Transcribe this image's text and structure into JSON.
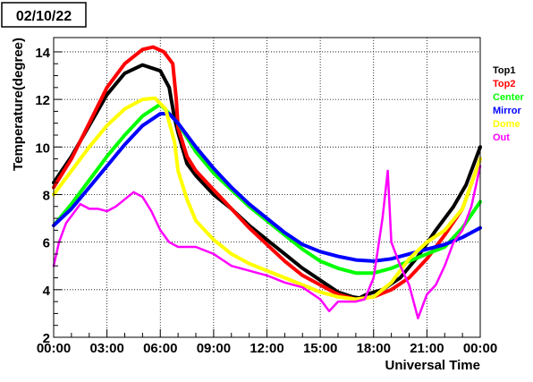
{
  "chart_data": {
    "type": "scatter",
    "title": "02/10/22",
    "xlabel": "Universal Time",
    "ylabel": "Temperature(degree)",
    "xlim": [
      0,
      24
    ],
    "ylim": [
      2,
      14.6
    ],
    "grid": true,
    "legend_placement": "right",
    "x_ticks": [
      {
        "value": 0,
        "label": "00:00"
      },
      {
        "value": 3,
        "label": "03:00"
      },
      {
        "value": 6,
        "label": "06:00"
      },
      {
        "value": 9,
        "label": "09:00"
      },
      {
        "value": 12,
        "label": "12:00"
      },
      {
        "value": 15,
        "label": "15:00"
      },
      {
        "value": 18,
        "label": "18:00"
      },
      {
        "value": 21,
        "label": "21:00"
      },
      {
        "value": 24,
        "label": "00:00"
      }
    ],
    "y_ticks": [
      {
        "value": 2,
        "label": "2"
      },
      {
        "value": 4,
        "label": "4"
      },
      {
        "value": 6,
        "label": "6"
      },
      {
        "value": 8,
        "label": "8"
      },
      {
        "value": 10,
        "label": "10"
      },
      {
        "value": 12,
        "label": "12"
      },
      {
        "value": 14,
        "label": "14"
      }
    ],
    "series": [
      {
        "name": "Top1",
        "color": "#000000",
        "points": [
          [
            0,
            8.5
          ],
          [
            1,
            9.6
          ],
          [
            2,
            10.9
          ],
          [
            3,
            12.2
          ],
          [
            4,
            13.1
          ],
          [
            5,
            13.45
          ],
          [
            6,
            13.2
          ],
          [
            6.5,
            12.5
          ],
          [
            6.8,
            11.2
          ],
          [
            7,
            10.6
          ],
          [
            7.5,
            9.3
          ],
          [
            8,
            8.8
          ],
          [
            9,
            8.0
          ],
          [
            10,
            7.4
          ],
          [
            11,
            6.7
          ],
          [
            12,
            6.1
          ],
          [
            13,
            5.5
          ],
          [
            14,
            4.9
          ],
          [
            15,
            4.4
          ],
          [
            16,
            3.9
          ],
          [
            16.8,
            3.7
          ],
          [
            17.2,
            3.65
          ],
          [
            17.6,
            3.8
          ],
          [
            18.5,
            4.0
          ],
          [
            19.5,
            4.5
          ],
          [
            20.5,
            5.4
          ],
          [
            21.5,
            6.5
          ],
          [
            22.5,
            7.5
          ],
          [
            23.2,
            8.4
          ],
          [
            24,
            10.0
          ]
        ]
      },
      {
        "name": "Top2",
        "color": "#ff0000",
        "points": [
          [
            0,
            8.3
          ],
          [
            1,
            9.5
          ],
          [
            2,
            11.0
          ],
          [
            3,
            12.5
          ],
          [
            4,
            13.5
          ],
          [
            5,
            14.1
          ],
          [
            5.6,
            14.2
          ],
          [
            6.2,
            14.0
          ],
          [
            6.7,
            13.5
          ],
          [
            6.9,
            12.0
          ],
          [
            7,
            10.8
          ],
          [
            7.5,
            9.6
          ],
          [
            8,
            9.0
          ],
          [
            9,
            8.2
          ],
          [
            10,
            7.4
          ],
          [
            11,
            6.6
          ],
          [
            12,
            5.9
          ],
          [
            13,
            5.2
          ],
          [
            14,
            4.6
          ],
          [
            15,
            4.2
          ],
          [
            16,
            3.8
          ],
          [
            17,
            3.6
          ],
          [
            18,
            3.7
          ],
          [
            19,
            4.0
          ],
          [
            20,
            4.5
          ],
          [
            21,
            5.3
          ],
          [
            22,
            6.3
          ],
          [
            23,
            7.4
          ],
          [
            24,
            9.5
          ]
        ]
      },
      {
        "name": "Center",
        "color": "#00ff00",
        "points": [
          [
            0,
            6.7
          ],
          [
            1,
            7.6
          ],
          [
            2,
            8.6
          ],
          [
            3,
            9.6
          ],
          [
            4,
            10.5
          ],
          [
            5,
            11.3
          ],
          [
            6,
            11.8
          ],
          [
            7,
            11.0
          ],
          [
            8,
            9.8
          ],
          [
            9,
            8.9
          ],
          [
            10,
            8.2
          ],
          [
            11,
            7.5
          ],
          [
            12,
            6.9
          ],
          [
            13,
            6.3
          ],
          [
            14,
            5.7
          ],
          [
            15,
            5.2
          ],
          [
            16,
            4.9
          ],
          [
            17,
            4.7
          ],
          [
            18,
            4.7
          ],
          [
            19,
            4.9
          ],
          [
            20,
            5.2
          ],
          [
            21,
            5.5
          ],
          [
            22,
            5.8
          ],
          [
            23,
            6.6
          ],
          [
            24,
            7.7
          ]
        ]
      },
      {
        "name": "Mirror",
        "color": "#0000ff",
        "points": [
          [
            0,
            6.7
          ],
          [
            1,
            7.4
          ],
          [
            2,
            8.3
          ],
          [
            3,
            9.2
          ],
          [
            4,
            10.1
          ],
          [
            5,
            10.9
          ],
          [
            6,
            11.4
          ],
          [
            6.5,
            11.4
          ],
          [
            7,
            11.0
          ],
          [
            8,
            10.0
          ],
          [
            9,
            9.1
          ],
          [
            10,
            8.3
          ],
          [
            11,
            7.6
          ],
          [
            12,
            7.0
          ],
          [
            13,
            6.4
          ],
          [
            14,
            5.9
          ],
          [
            15,
            5.6
          ],
          [
            16,
            5.4
          ],
          [
            17,
            5.25
          ],
          [
            18,
            5.2
          ],
          [
            19,
            5.3
          ],
          [
            20,
            5.5
          ],
          [
            21,
            5.7
          ],
          [
            22,
            5.9
          ],
          [
            23,
            6.2
          ],
          [
            24,
            6.6
          ]
        ]
      },
      {
        "name": "Dome",
        "color": "#ffff00",
        "points": [
          [
            0,
            8.0
          ],
          [
            1,
            9.0
          ],
          [
            2,
            10.0
          ],
          [
            3,
            10.9
          ],
          [
            4,
            11.6
          ],
          [
            5,
            12.0
          ],
          [
            5.7,
            12.05
          ],
          [
            6.3,
            11.6
          ],
          [
            6.8,
            10.2
          ],
          [
            7,
            9.0
          ],
          [
            7.5,
            7.8
          ],
          [
            8,
            6.9
          ],
          [
            9,
            6.1
          ],
          [
            10,
            5.5
          ],
          [
            11,
            5.1
          ],
          [
            12,
            4.8
          ],
          [
            13,
            4.5
          ],
          [
            14,
            4.2
          ],
          [
            15,
            3.9
          ],
          [
            16,
            3.7
          ],
          [
            17,
            3.6
          ],
          [
            18,
            3.7
          ],
          [
            19,
            4.3
          ],
          [
            20,
            5.3
          ],
          [
            21,
            6.0
          ],
          [
            22,
            6.5
          ],
          [
            23,
            7.4
          ],
          [
            24,
            9.5
          ]
        ]
      },
      {
        "name": "Out",
        "color": "#ff00ff",
        "points": [
          [
            0,
            5.0
          ],
          [
            0.3,
            6.0
          ],
          [
            0.7,
            6.8
          ],
          [
            1,
            7.1
          ],
          [
            1.5,
            7.6
          ],
          [
            2,
            7.4
          ],
          [
            2.5,
            7.4
          ],
          [
            3,
            7.3
          ],
          [
            3.5,
            7.5
          ],
          [
            4,
            7.8
          ],
          [
            4.5,
            8.1
          ],
          [
            5,
            7.9
          ],
          [
            5.5,
            7.3
          ],
          [
            6,
            6.5
          ],
          [
            6.5,
            6.0
          ],
          [
            7,
            5.8
          ],
          [
            8,
            5.8
          ],
          [
            9,
            5.5
          ],
          [
            10,
            5.0
          ],
          [
            11,
            4.8
          ],
          [
            12,
            4.6
          ],
          [
            13,
            4.3
          ],
          [
            14,
            4.1
          ],
          [
            15,
            3.6
          ],
          [
            15.5,
            3.1
          ],
          [
            16,
            3.5
          ],
          [
            17,
            3.5
          ],
          [
            17.5,
            3.6
          ],
          [
            18,
            4.5
          ],
          [
            18.5,
            7.0
          ],
          [
            18.8,
            9.0
          ],
          [
            19,
            6.0
          ],
          [
            19.5,
            5.0
          ],
          [
            20,
            4.2
          ],
          [
            20.5,
            2.8
          ],
          [
            21,
            3.8
          ],
          [
            21.5,
            4.2
          ],
          [
            22,
            5.0
          ],
          [
            22.5,
            6.0
          ],
          [
            23,
            6.5
          ],
          [
            23.5,
            7.5
          ],
          [
            24,
            9.2
          ]
        ]
      }
    ]
  }
}
